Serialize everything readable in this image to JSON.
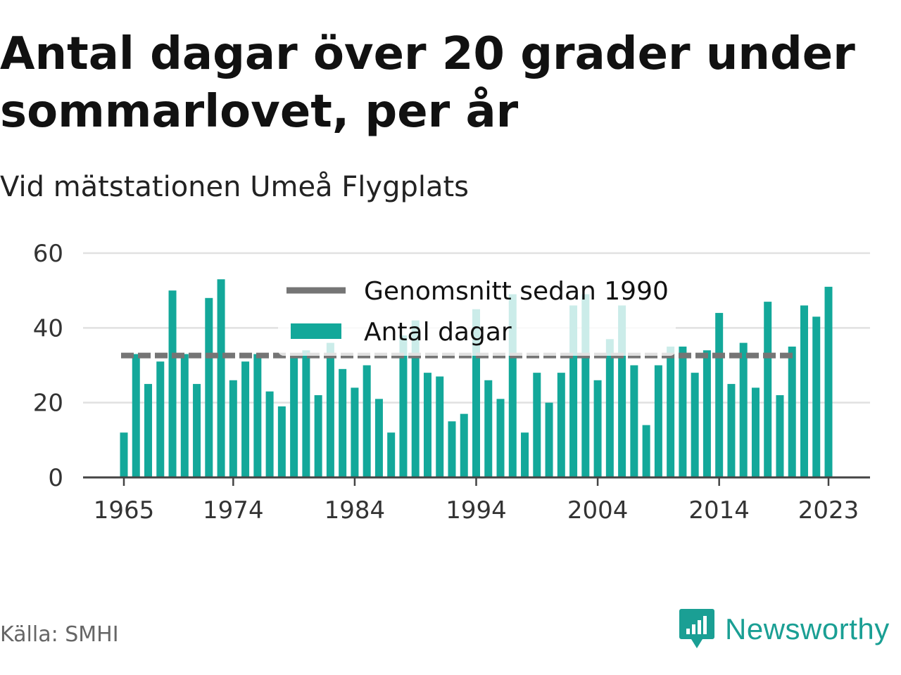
{
  "title": "Antal dagar över 20 grader under sommarlovet, per år",
  "subtitle": "Vid mätstationen Umeå Flygplats",
  "source": "Källa: SMHI",
  "brand": {
    "name": "Newsworthy",
    "icon": "newsworthy-logo-icon"
  },
  "colors": {
    "bar": "#13a89a",
    "average_line": "#757575",
    "grid": "#e1e1e1",
    "axis": "#444444"
  },
  "chart_data": {
    "type": "bar",
    "x": [
      1965,
      1966,
      1967,
      1968,
      1969,
      1970,
      1971,
      1972,
      1973,
      1974,
      1975,
      1976,
      1977,
      1978,
      1979,
      1980,
      1981,
      1982,
      1983,
      1984,
      1985,
      1986,
      1987,
      1988,
      1989,
      1990,
      1991,
      1992,
      1993,
      1994,
      1995,
      1996,
      1997,
      1998,
      1999,
      2000,
      2001,
      2002,
      2003,
      2004,
      2005,
      2006,
      2007,
      2008,
      2009,
      2010,
      2011,
      2012,
      2013,
      2014,
      2015,
      2016,
      2017,
      2018,
      2019,
      2020,
      2021,
      2022,
      2023
    ],
    "series": [
      {
        "name": "Antal dagar",
        "values": [
          12,
          33,
          25,
          31,
          50,
          33,
          25,
          48,
          53,
          26,
          31,
          33,
          23,
          19,
          33,
          34,
          22,
          36,
          29,
          24,
          30,
          21,
          12,
          38,
          42,
          28,
          27,
          15,
          17,
          45,
          26,
          21,
          49,
          12,
          28,
          20,
          28,
          46,
          49,
          26,
          37,
          46,
          30,
          14,
          30,
          35,
          35,
          28,
          34,
          44,
          25,
          36,
          24,
          47,
          22,
          35,
          46,
          43,
          51
        ]
      },
      {
        "name": "Genomsnitt sedan 1990",
        "type": "line",
        "value": 32.6,
        "x_range": [
          1965,
          2020
        ]
      }
    ],
    "x_tick_labels": [
      "1965",
      "1974",
      "1984",
      "1994",
      "2004",
      "2014",
      "2023"
    ],
    "y_tick_labels": [
      "0",
      "20",
      "40",
      "60"
    ],
    "ylim": [
      0,
      60
    ],
    "grid": true,
    "legend_position": "top-center"
  }
}
